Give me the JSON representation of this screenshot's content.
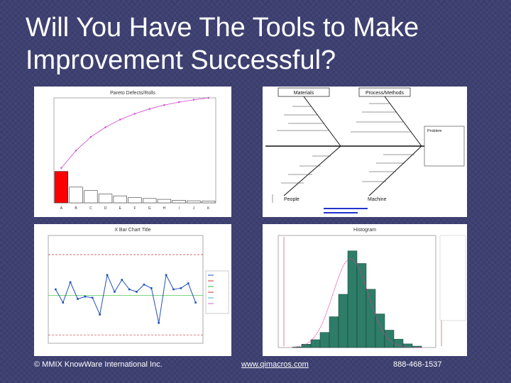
{
  "slide": {
    "title_line1": "Will You Have The Tools to Make",
    "title_line2": "Improvement Successful?"
  },
  "pareto": {
    "title": "Pareto Defects/Rolls",
    "categories": [
      "A",
      "B",
      "C",
      "D",
      "E",
      "F",
      "G",
      "H",
      "I",
      "J",
      "K"
    ],
    "values": [
      18,
      9,
      7,
      5,
      4,
      3,
      2.5,
      2,
      1.5,
      1.2,
      1
    ],
    "ylim": [
      0,
      60
    ],
    "highlight_color": "#ff0000",
    "line_color": "#cc44cc"
  },
  "fishbone": {
    "top_left_label": "Materials",
    "top_right_label": "Process/Methods",
    "bottom_left_label": "People",
    "bottom_right_label": "Machine",
    "problem_label": "Problem"
  },
  "xbar": {
    "title": "X Bar Chart Title",
    "values": [
      285,
      274,
      291,
      277,
      279,
      278,
      264,
      297,
      283,
      293,
      285,
      283,
      289,
      286,
      257,
      297,
      285,
      286,
      290,
      274
    ],
    "center": 280,
    "ucl": 314,
    "lcl": 247,
    "ylim": [
      240,
      330
    ],
    "line_color": "#1f4fbf",
    "ucl_color": "#cc3333",
    "center_color": "#33bb33"
  },
  "histogram": {
    "title": "Histogram",
    "values": [
      2,
      12,
      28,
      54,
      110,
      190,
      345,
      300,
      208,
      120,
      62,
      30,
      13,
      5
    ],
    "ylim": [
      0,
      400
    ],
    "bar_color": "#2e7d68",
    "curve_color": "#ee3399"
  },
  "footer": {
    "copyright": "© MMIX KnowWare International Inc.",
    "website": "www.qimacros.com",
    "phone": "888-468-1537"
  }
}
